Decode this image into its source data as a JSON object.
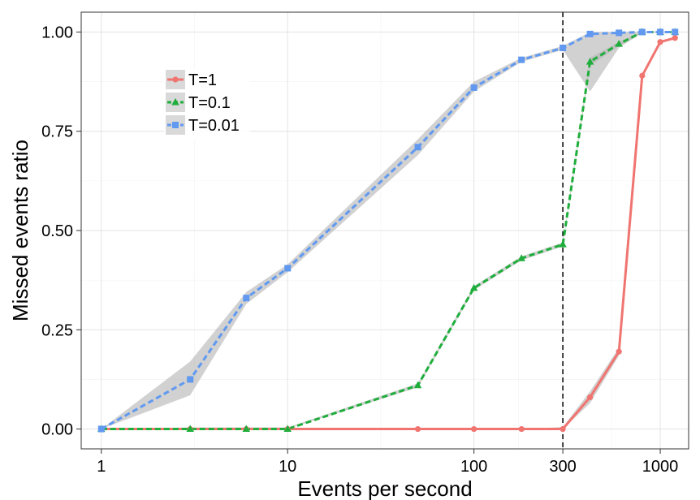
{
  "chart_data": {
    "type": "line",
    "xlabel": "Events per second",
    "ylabel": "Missed events ratio",
    "x_scale": "log10",
    "xlim": [
      0.78,
      1420
    ],
    "ylim": [
      -0.05,
      1.05
    ],
    "x_ticks": [
      1,
      10,
      100,
      300,
      1000
    ],
    "x_tick_labels": [
      "1",
      "10",
      "100",
      "300",
      "1000"
    ],
    "y_ticks": [
      0,
      0.25,
      0.5,
      0.75,
      1.0
    ],
    "y_tick_labels": [
      "0.00",
      "0.25",
      "0.50",
      "0.75",
      "1.00"
    ],
    "grid": true,
    "legend_position": "top-left",
    "reference_line": {
      "x": 300,
      "style": "dashed",
      "color": "#000000"
    },
    "series": [
      {
        "name": "T=1",
        "color": "#F07470",
        "marker": "circle",
        "line_style": "solid",
        "x": [
          1,
          3,
          6,
          10,
          50,
          100,
          180,
          300,
          420,
          600,
          800,
          1000,
          1200
        ],
        "y": [
          0,
          0,
          0,
          0,
          0,
          0,
          0,
          0,
          0.08,
          0.195,
          0.89,
          0.975,
          0.985
        ],
        "band_lower": [
          0,
          0,
          0,
          0,
          0,
          0,
          0,
          0,
          0.065,
          0.185,
          0.885,
          0.972,
          0.982
        ],
        "band_upper": [
          0,
          0,
          0,
          0,
          0,
          0,
          0,
          0.005,
          0.095,
          0.205,
          0.895,
          0.978,
          0.988
        ]
      },
      {
        "name": "T=0.1",
        "color": "#1FAE3C",
        "marker": "triangle",
        "line_style": "dashed",
        "x": [
          1,
          3,
          6,
          10,
          50,
          100,
          180,
          300,
          420,
          600,
          800,
          1000,
          1200
        ],
        "y": [
          0,
          0,
          0,
          0,
          0.11,
          0.355,
          0.43,
          0.465,
          0.925,
          0.97,
          1.0,
          1.0,
          1.0
        ],
        "band_lower": [
          0,
          0,
          0,
          0,
          0.105,
          0.35,
          0.425,
          0.46,
          0.915,
          0.965,
          0.998,
          0.999,
          0.999
        ],
        "band_upper": [
          0,
          0.004,
          0.004,
          0.004,
          0.115,
          0.36,
          0.435,
          0.47,
          0.935,
          0.975,
          1.0,
          1.0,
          1.0
        ]
      },
      {
        "name": "T=0.01",
        "color": "#6199F0",
        "marker": "square",
        "line_style": "dashed",
        "x": [
          1,
          3,
          6,
          10,
          50,
          100,
          180,
          300,
          420,
          600,
          800,
          1000,
          1200
        ],
        "y": [
          0,
          0.125,
          0.33,
          0.405,
          0.71,
          0.86,
          0.93,
          0.96,
          0.995,
          0.998,
          1.0,
          1.0,
          1.0
        ],
        "band_lower": [
          0,
          0.085,
          0.315,
          0.395,
          0.69,
          0.85,
          0.925,
          0.955,
          0.85,
          0.96,
          0.998,
          0.999,
          0.999
        ],
        "band_upper": [
          0,
          0.17,
          0.345,
          0.415,
          0.73,
          0.875,
          0.935,
          0.965,
          1.0,
          1.0,
          1.0,
          1.0,
          1.0
        ]
      }
    ]
  }
}
